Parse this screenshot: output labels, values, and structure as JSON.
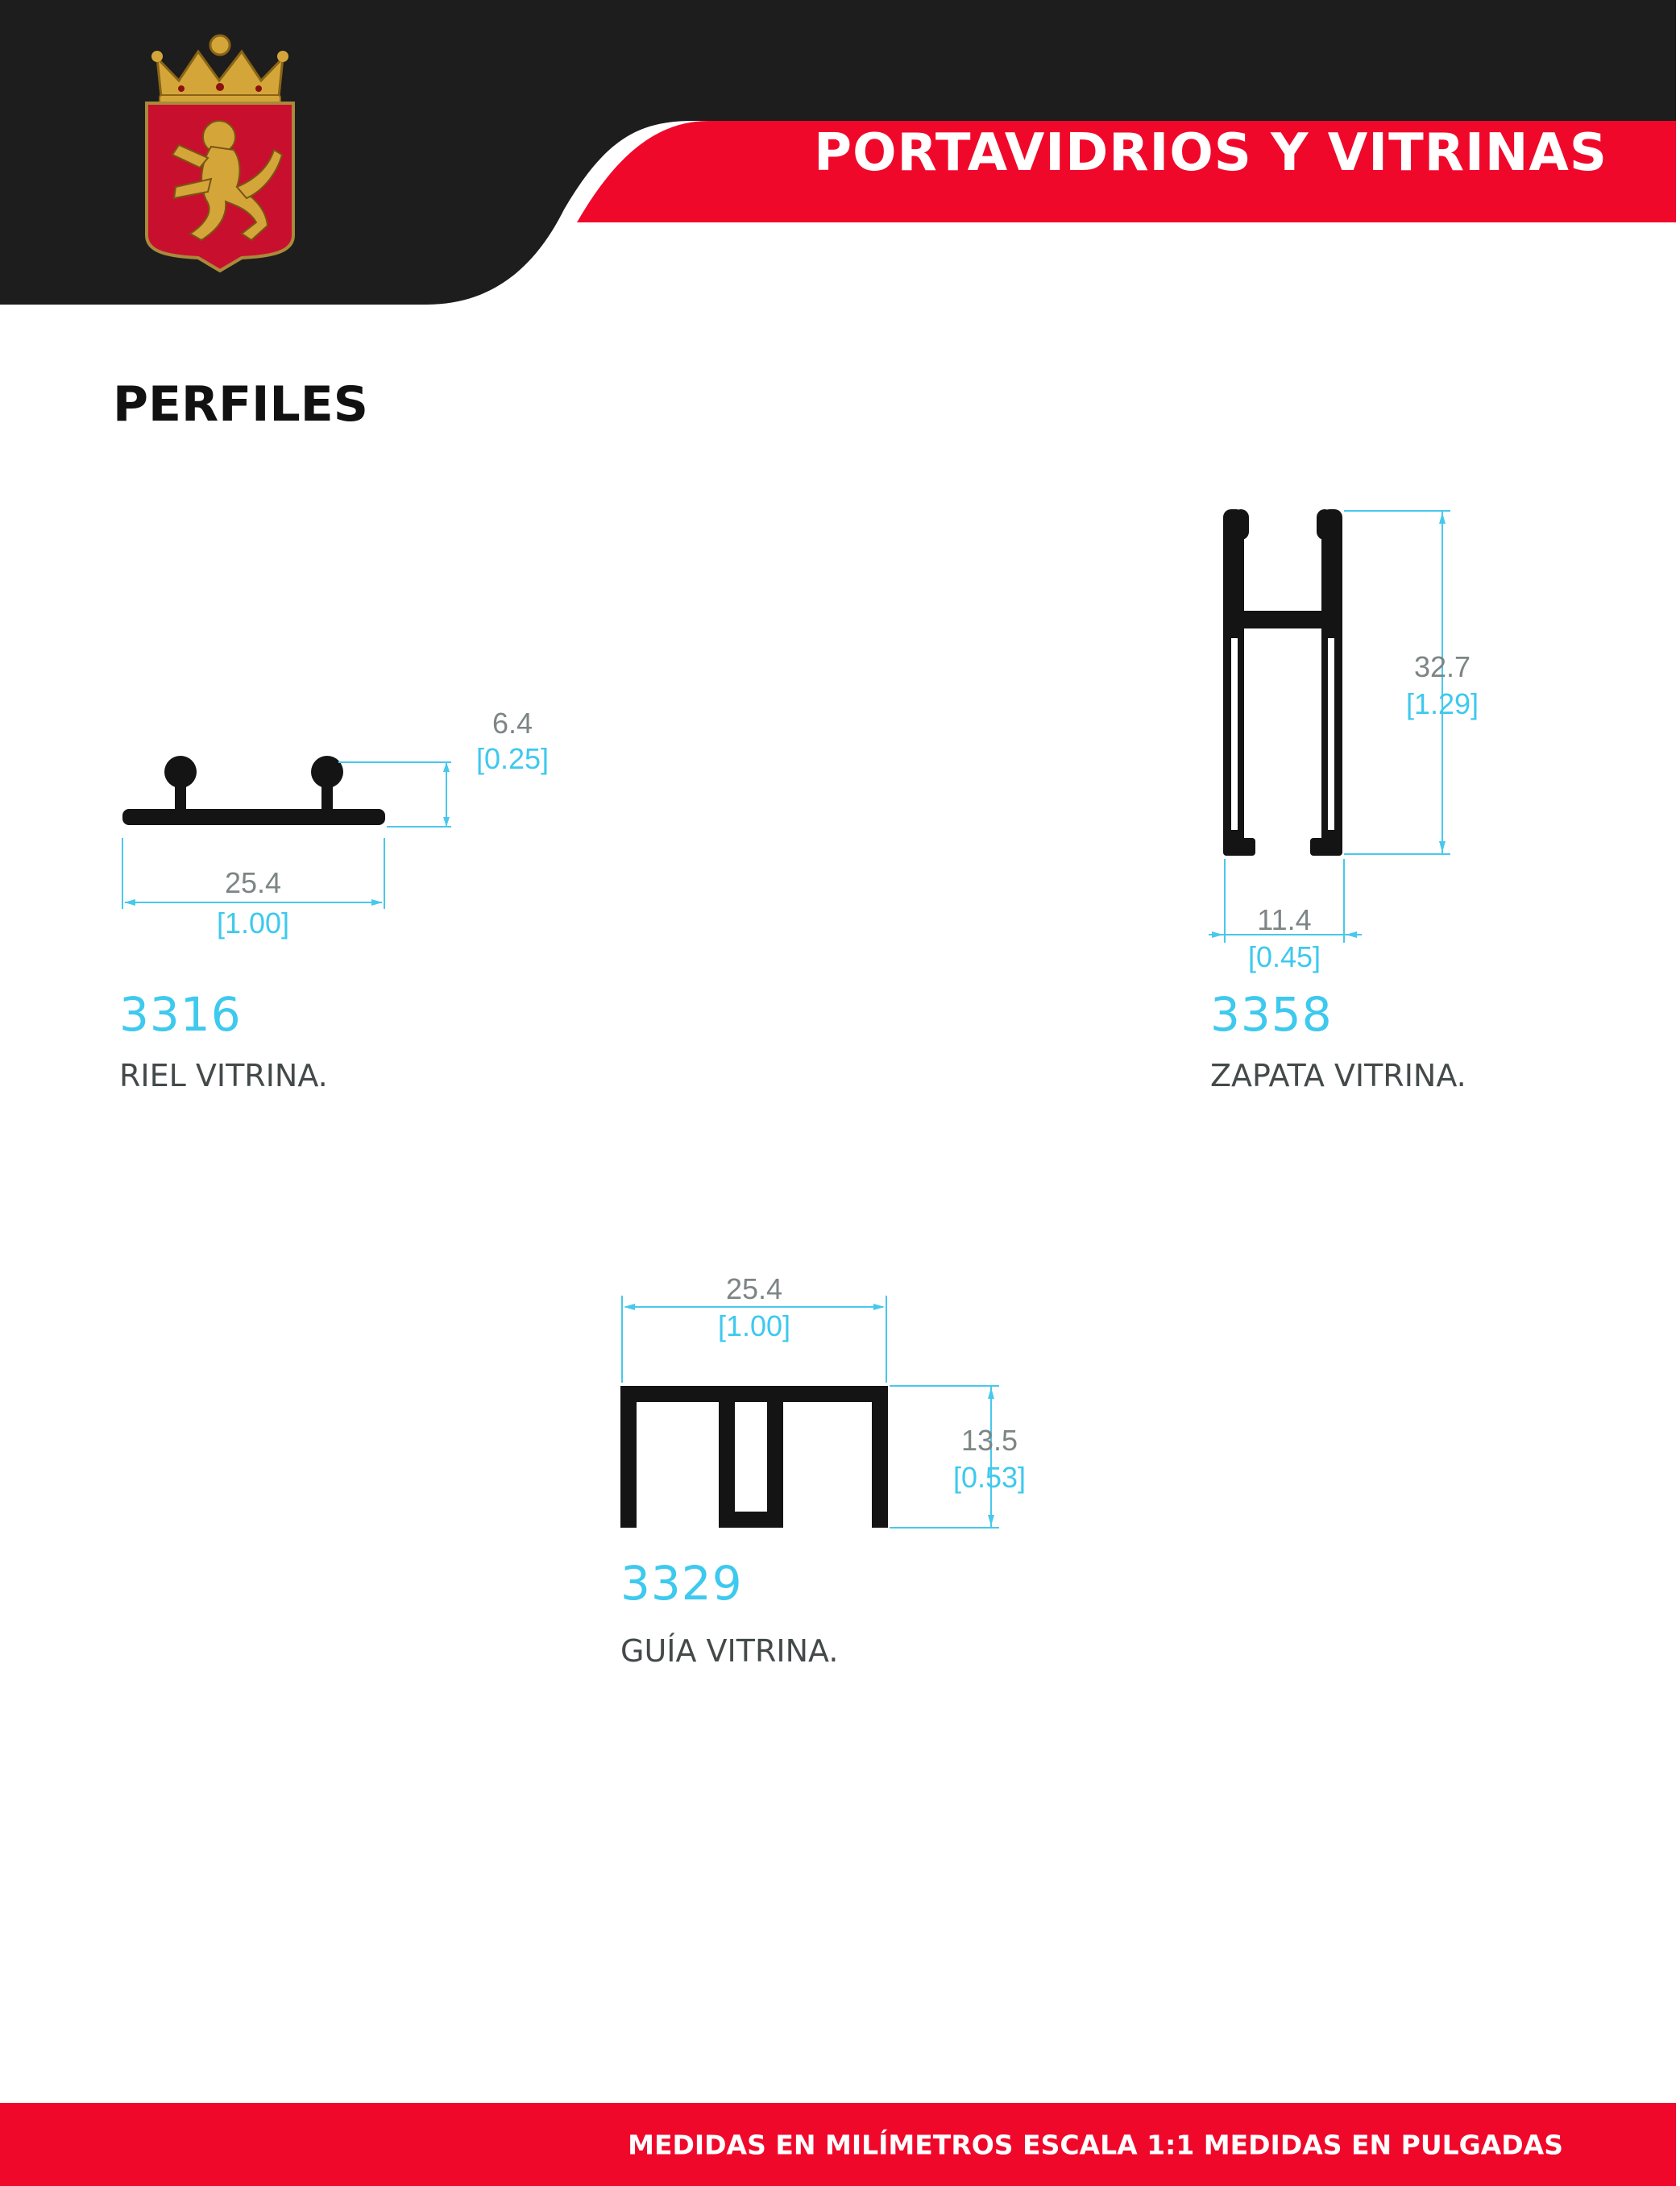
{
  "header": {
    "title": "PORTAVIDRIOS Y VITRINAS",
    "colors": {
      "dark": "#1d1d1d",
      "accent": "#f0082b",
      "shield": "#c8102e",
      "gold": "#d4a63a"
    },
    "logo": "crowned-lion-shield-logo"
  },
  "section": {
    "title": "PERFILES"
  },
  "profiles": [
    {
      "code": "3316",
      "name": "RIEL VITRINA.",
      "dims": [
        {
          "mm": "6.4",
          "in": "[0.25]"
        },
        {
          "mm": "25.4",
          "in": "[1.00]"
        }
      ]
    },
    {
      "code": "3358",
      "name": "ZAPATA VITRINA.",
      "dims": [
        {
          "mm": "32.7",
          "in": "[1.29]"
        },
        {
          "mm": "11.4",
          "in": "[0.45]"
        }
      ]
    },
    {
      "code": "3329",
      "name": "GUÍA VITRINA.",
      "dims": [
        {
          "mm": "25.4",
          "in": "[1.00]"
        },
        {
          "mm": "13.5",
          "in": "[0.53]"
        }
      ]
    }
  ],
  "footer": {
    "text": "MEDIDAS EN MILÍMETROS ESCALA 1:1 MEDIDAS EN PULGADAS"
  }
}
